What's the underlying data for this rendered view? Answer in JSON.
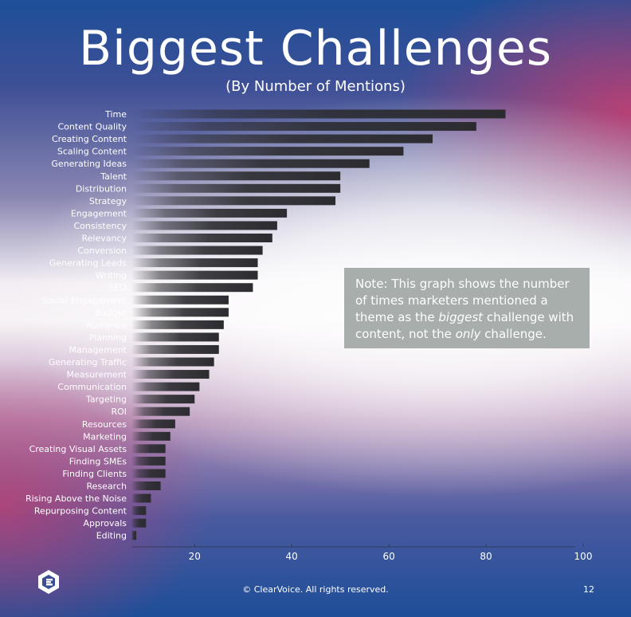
{
  "chart_data": {
    "type": "bar",
    "orientation": "horizontal",
    "title": "Biggest Challenges",
    "subtitle": "(By Number of Mentions)",
    "categories": [
      "Time",
      "Content Quality",
      "Creating Content",
      "Scaling Content",
      "Generating Ideas",
      "Talent",
      "Distribution",
      "Strategy",
      "Engagement",
      "Consistency",
      "Relevancy",
      "Conversion",
      "Generating Leads",
      "Writing",
      "SEO",
      "Social Engagement",
      "Budget",
      "Audience",
      "Planning",
      "Management",
      "Generating Traffic",
      "Measurement",
      "Communication",
      "Targeting",
      "ROI",
      "Resources",
      "Marketing",
      "Creating Visual Assets",
      "Finding SMEs",
      "Finding Clients",
      "Research",
      "Rising Above the Noise",
      "Repurposing Content",
      "Approvals",
      "Editing"
    ],
    "values": [
      84,
      78,
      69,
      63,
      56,
      50,
      50,
      49,
      39,
      37,
      36,
      34,
      33,
      33,
      32,
      27,
      27,
      26,
      25,
      25,
      24,
      23,
      21,
      20,
      19,
      16,
      15,
      14,
      14,
      14,
      13,
      11,
      10,
      10,
      8
    ],
    "xlim": [
      7,
      100
    ],
    "xticks": [
      20,
      40,
      60,
      80,
      100
    ],
    "bar_color": "#2b2b30",
    "label_color": "#ffffff"
  },
  "note": {
    "prefix": "Note: This graph shows the number of times marketers mentioned a theme as the ",
    "emph1": "biggest",
    "middle": " challenge with content, not the ",
    "emph2": "only",
    "suffix": " challenge."
  },
  "footer": {
    "copyright": "© ClearVoice. All rights reserved.",
    "page_number": "12"
  },
  "logo": {
    "icon": "clearvoice-logo-icon"
  }
}
